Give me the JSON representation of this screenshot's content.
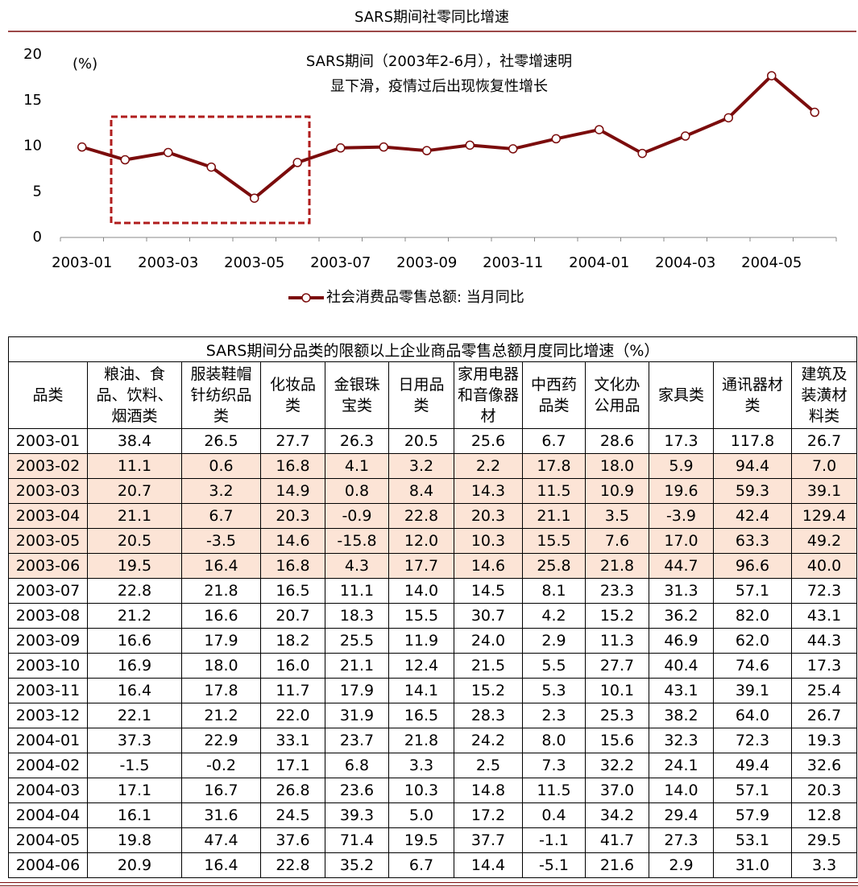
{
  "chart_data": {
    "type": "line",
    "title": "SARS期间社零同比增速",
    "y_label": "(%)",
    "annotation": [
      "SARS期间（2003年2-6月），社零增速明",
      "显下滑，疫情过后出现恢复性增长"
    ],
    "categories": [
      "2003-01",
      null,
      "2003-03",
      null,
      "2003-05",
      null,
      "2003-07",
      null,
      "2003-09",
      null,
      "2003-11",
      null,
      "2004-01",
      null,
      "2004-03",
      null,
      "2004-05",
      null
    ],
    "series": [
      {
        "name": "社会消费品零售总额: 当月同比",
        "color": "#7b0c0c",
        "values": [
          9.9,
          8.5,
          9.3,
          7.7,
          4.3,
          8.2,
          9.8,
          9.9,
          9.5,
          10.1,
          9.7,
          10.8,
          11.8,
          9.2,
          11.1,
          13.1,
          17.7,
          13.7
        ]
      }
    ],
    "ylim": [
      0,
      20
    ],
    "yticks": [
      0,
      5,
      10,
      15,
      20
    ],
    "grid": false
  },
  "table": {
    "title": "SARS期间分品类的限额以上企业商品零售总额月度同比增速（%）",
    "header": [
      "品类",
      "粮油、食品、饮料、烟酒类",
      "服装鞋帽针纺织品类",
      "化妆品类",
      "金银珠宝类",
      "日用品类",
      "家用电器和音像器材",
      "中西药品类",
      "文化办公用品",
      "家具类",
      "通讯器材类",
      "建筑及装潢材料类"
    ],
    "rows": [
      [
        "2003-01",
        "38.4",
        "26.5",
        "27.7",
        "26.3",
        "20.5",
        "25.6",
        "6.7",
        "28.6",
        "17.3",
        "117.8",
        "26.7"
      ],
      [
        "2003-02",
        "11.1",
        "0.6",
        "16.8",
        "4.1",
        "3.2",
        "2.2",
        "17.8",
        "18.0",
        "5.9",
        "94.4",
        "7.0"
      ],
      [
        "2003-03",
        "20.7",
        "3.2",
        "14.9",
        "0.8",
        "8.4",
        "14.3",
        "11.5",
        "10.9",
        "19.6",
        "59.3",
        "39.1"
      ],
      [
        "2003-04",
        "21.1",
        "6.7",
        "20.3",
        "-0.9",
        "22.8",
        "20.3",
        "21.1",
        "3.5",
        "-3.9",
        "42.4",
        "129.4"
      ],
      [
        "2003-05",
        "20.5",
        "-3.5",
        "14.6",
        "-15.8",
        "12.0",
        "10.3",
        "15.5",
        "7.6",
        "17.0",
        "63.3",
        "49.2"
      ],
      [
        "2003-06",
        "19.5",
        "16.4",
        "16.8",
        "4.3",
        "17.7",
        "14.6",
        "25.8",
        "21.8",
        "44.7",
        "96.6",
        "40.0"
      ],
      [
        "2003-07",
        "22.8",
        "21.8",
        "16.5",
        "11.1",
        "14.0",
        "14.5",
        "8.1",
        "23.3",
        "31.3",
        "57.1",
        "72.3"
      ],
      [
        "2003-08",
        "21.2",
        "16.6",
        "20.7",
        "18.3",
        "15.5",
        "30.7",
        "4.2",
        "15.2",
        "36.2",
        "82.0",
        "43.1"
      ],
      [
        "2003-09",
        "16.6",
        "17.9",
        "18.2",
        "25.5",
        "11.9",
        "24.0",
        "2.9",
        "11.3",
        "46.9",
        "62.0",
        "44.3"
      ],
      [
        "2003-10",
        "16.9",
        "18.0",
        "16.0",
        "21.1",
        "12.4",
        "21.5",
        "5.5",
        "27.7",
        "40.4",
        "74.6",
        "17.3"
      ],
      [
        "2003-11",
        "16.4",
        "17.8",
        "11.7",
        "17.9",
        "14.1",
        "15.2",
        "5.3",
        "10.1",
        "43.1",
        "39.1",
        "25.4"
      ],
      [
        "2003-12",
        "22.1",
        "21.2",
        "22.0",
        "31.9",
        "16.5",
        "28.3",
        "2.3",
        "25.3",
        "38.2",
        "64.0",
        "26.7"
      ],
      [
        "2004-01",
        "37.3",
        "22.9",
        "33.1",
        "23.7",
        "21.8",
        "24.2",
        "8.0",
        "15.6",
        "32.3",
        "72.3",
        "19.3"
      ],
      [
        "2004-02",
        "-1.5",
        "-0.2",
        "17.1",
        "6.8",
        "3.3",
        "2.5",
        "7.3",
        "32.2",
        "24.1",
        "49.4",
        "32.6"
      ],
      [
        "2004-03",
        "17.1",
        "16.7",
        "26.8",
        "23.6",
        "10.3",
        "14.8",
        "11.5",
        "37.0",
        "14.0",
        "57.1",
        "20.3"
      ],
      [
        "2004-04",
        "16.1",
        "31.6",
        "24.5",
        "39.3",
        "5.0",
        "17.2",
        "0.4",
        "34.2",
        "29.4",
        "57.9",
        "12.8"
      ],
      [
        "2004-05",
        "19.8",
        "47.4",
        "37.6",
        "71.4",
        "19.5",
        "37.7",
        "-1.1",
        "41.7",
        "27.3",
        "53.1",
        "29.5"
      ],
      [
        "2004-06",
        "20.9",
        "16.4",
        "22.8",
        "35.2",
        "6.7",
        "14.4",
        "-5.1",
        "21.6",
        "2.9",
        "31.0",
        "3.3"
      ]
    ]
  }
}
